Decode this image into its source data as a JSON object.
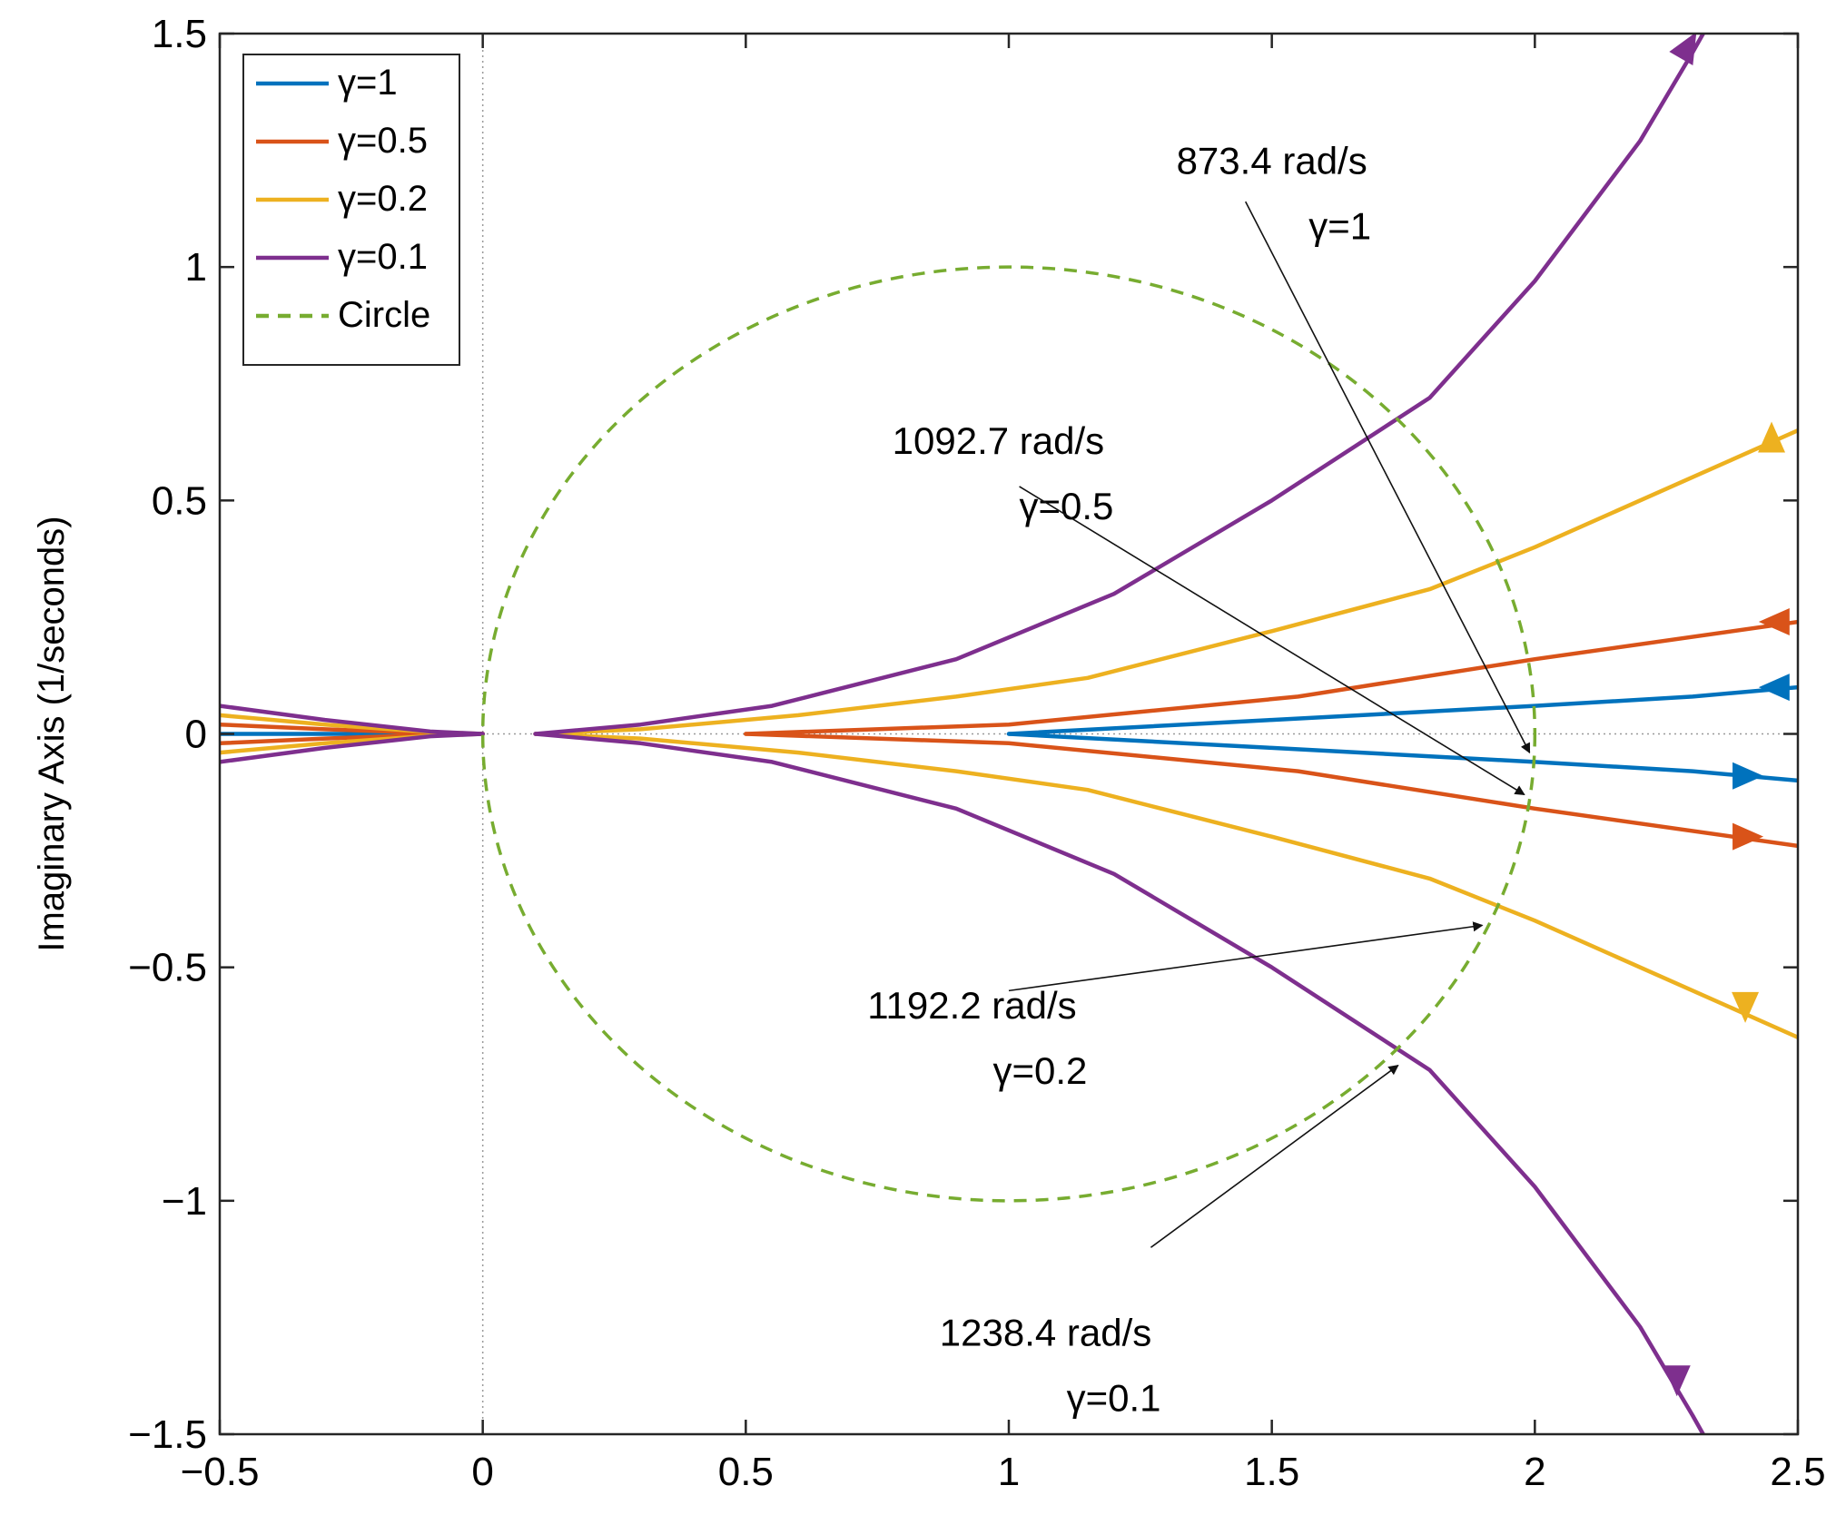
{
  "chart_data": {
    "type": "line",
    "title": "",
    "xlabel": "",
    "ylabel": "Imaginary Axis (1/seconds)",
    "xlim": [
      -0.5,
      2.5
    ],
    "ylim": [
      -1.5,
      1.5
    ],
    "xticks": [
      -0.5,
      0,
      0.5,
      1,
      1.5,
      2,
      2.5
    ],
    "xtick_labels": [
      "−0.5",
      "0",
      "0.5",
      "1",
      "1.5",
      "2",
      "2.5"
    ],
    "yticks": [
      -1.5,
      -1,
      -0.5,
      0,
      0.5,
      1,
      1.5
    ],
    "ytick_labels": [
      "−1.5",
      "−1",
      "−0.5",
      "0",
      "0.5",
      "1",
      "1.5"
    ],
    "grid": false,
    "legend_position": "top-left",
    "series": [
      {
        "name": "γ=1",
        "color": "#0072BD",
        "style": "solid",
        "branches": [
          {
            "x": [
              1.0,
              1.5,
              2.0,
              2.3,
              2.5
            ],
            "y": [
              0.0,
              0.03,
              0.06,
              0.08,
              0.1
            ]
          },
          {
            "x": [
              1.0,
              1.5,
              2.0,
              2.3,
              2.5
            ],
            "y": [
              0.0,
              -0.03,
              -0.06,
              -0.08,
              -0.1
            ]
          },
          {
            "x": [
              -0.5,
              -0.3,
              -0.1,
              0.0
            ],
            "y": [
              0.0,
              0.0,
              0.0,
              0.0
            ]
          }
        ],
        "arrows": [
          {
            "x": 2.46,
            "y": 0.1,
            "dir": "left"
          },
          {
            "x": 2.4,
            "y": -0.09,
            "dir": "right"
          }
        ]
      },
      {
        "name": "γ=0.5",
        "color": "#D95319",
        "style": "solid",
        "branches": [
          {
            "x": [
              0.5,
              1.0,
              1.55,
              2.0,
              2.5
            ],
            "y": [
              0.0,
              0.02,
              0.08,
              0.16,
              0.24
            ]
          },
          {
            "x": [
              0.5,
              1.0,
              1.55,
              2.0,
              2.5
            ],
            "y": [
              0.0,
              -0.02,
              -0.08,
              -0.16,
              -0.24
            ]
          },
          {
            "x": [
              -0.5,
              -0.3,
              -0.1,
              0.0
            ],
            "y": [
              0.02,
              0.01,
              0.002,
              0.0
            ]
          },
          {
            "x": [
              -0.5,
              -0.3,
              -0.1,
              0.0
            ],
            "y": [
              -0.02,
              -0.01,
              -0.002,
              0.0
            ]
          }
        ],
        "arrows": [
          {
            "x": 2.46,
            "y": 0.24,
            "dir": "left"
          },
          {
            "x": 2.4,
            "y": -0.22,
            "dir": "right"
          }
        ]
      },
      {
        "name": "γ=0.2",
        "color": "#EDB120",
        "style": "solid",
        "branches": [
          {
            "x": [
              0.1,
              0.3,
              0.6,
              0.9,
              1.15,
              1.5,
              1.8,
              2.0,
              2.5
            ],
            "y": [
              0.0,
              0.01,
              0.04,
              0.08,
              0.12,
              0.22,
              0.31,
              0.4,
              0.65
            ]
          },
          {
            "x": [
              0.1,
              0.3,
              0.6,
              0.9,
              1.15,
              1.5,
              1.8,
              2.0,
              2.5
            ],
            "y": [
              0.0,
              -0.01,
              -0.04,
              -0.08,
              -0.12,
              -0.22,
              -0.31,
              -0.4,
              -0.65
            ]
          },
          {
            "x": [
              -0.5,
              -0.3,
              -0.1,
              0.0
            ],
            "y": [
              0.04,
              0.02,
              0.004,
              0.0
            ]
          },
          {
            "x": [
              -0.5,
              -0.3,
              -0.1,
              0.0
            ],
            "y": [
              -0.04,
              -0.02,
              -0.004,
              0.0
            ]
          }
        ],
        "arrows": [
          {
            "x": 2.45,
            "y": 0.63,
            "dir": "up"
          },
          {
            "x": 2.4,
            "y": -0.58,
            "dir": "down"
          }
        ]
      },
      {
        "name": "γ=0.1",
        "color": "#7E2F8E",
        "style": "solid",
        "branches": [
          {
            "x": [
              0.1,
              0.3,
              0.55,
              0.9,
              1.2,
              1.5,
              1.8,
              2.0,
              2.2,
              2.3,
              2.32
            ],
            "y": [
              0.0,
              0.02,
              0.06,
              0.16,
              0.3,
              0.5,
              0.72,
              0.97,
              1.27,
              1.46,
              1.5
            ]
          },
          {
            "x": [
              0.1,
              0.3,
              0.55,
              0.9,
              1.2,
              1.5,
              1.8,
              2.0,
              2.2,
              2.3,
              2.32
            ],
            "y": [
              0.0,
              -0.02,
              -0.06,
              -0.16,
              -0.3,
              -0.5,
              -0.72,
              -0.97,
              -1.27,
              -1.46,
              -1.5
            ]
          },
          {
            "x": [
              -0.5,
              -0.3,
              -0.1,
              0.0
            ],
            "y": [
              0.06,
              0.03,
              0.005,
              0.0
            ]
          },
          {
            "x": [
              -0.5,
              -0.3,
              -0.1,
              0.0
            ],
            "y": [
              -0.06,
              -0.03,
              -0.005,
              0.0
            ]
          }
        ],
        "arrows": [
          {
            "x": 2.29,
            "y": 1.47,
            "dir": "up-right"
          },
          {
            "x": 2.27,
            "y": -1.38,
            "dir": "down"
          }
        ]
      },
      {
        "name": "Circle",
        "color": "#77AC30",
        "style": "dashed",
        "shape": "circle",
        "center": [
          1,
          0
        ],
        "radius": 1
      }
    ],
    "annotations": [
      {
        "line1": "873.4 rad/s",
        "line2": "γ=1",
        "text_at": [
          1.5,
          1.2
        ],
        "arrow_from": [
          1.45,
          1.14
        ],
        "arrow_to": [
          1.99,
          -0.04
        ]
      },
      {
        "line1": "1092.7 rad/s",
        "line2": "γ=0.5",
        "text_at": [
          0.98,
          0.6
        ],
        "arrow_from": [
          1.02,
          0.53
        ],
        "arrow_to": [
          1.98,
          -0.13
        ]
      },
      {
        "line1": "1192.2 rad/s",
        "line2": "γ=0.2",
        "text_at": [
          0.93,
          -0.61
        ],
        "arrow_from": [
          1.0,
          -0.55
        ],
        "arrow_to": [
          1.9,
          -0.41
        ]
      },
      {
        "line1": "1238.4 rad/s",
        "line2": "γ=0.1",
        "text_at": [
          1.07,
          -1.31
        ],
        "arrow_from": [
          1.27,
          -1.1
        ],
        "arrow_to": [
          1.74,
          -0.71
        ]
      }
    ]
  }
}
